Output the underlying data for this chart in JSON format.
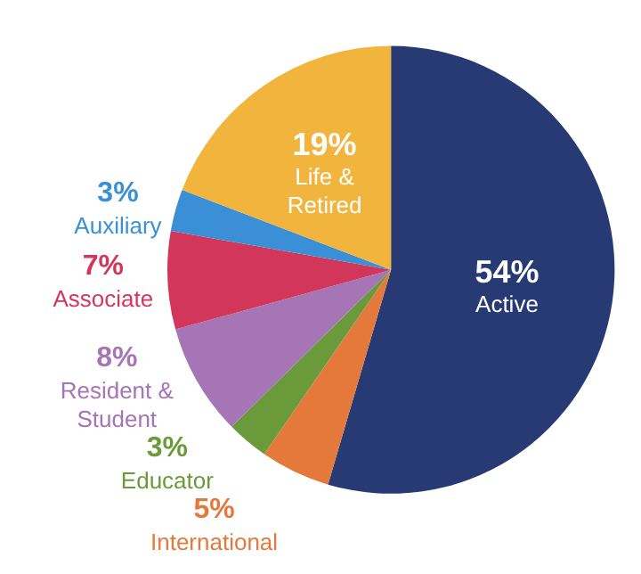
{
  "chart_data": {
    "type": "pie",
    "categories": [
      "Active",
      "International",
      "Educator",
      "Resident & Student",
      "Associate",
      "Auxiliary",
      "Life & Retired"
    ],
    "values": [
      54,
      5,
      3,
      8,
      7,
      3,
      19
    ],
    "value_labels": [
      "54%",
      "5%",
      "3%",
      "8%",
      "7%",
      "3%",
      "19%"
    ],
    "colors": [
      "#283a73",
      "#e5793c",
      "#6b9a3b",
      "#a575b5",
      "#d2375b",
      "#3a8fd6",
      "#f1b53d"
    ],
    "legend": false
  }
}
